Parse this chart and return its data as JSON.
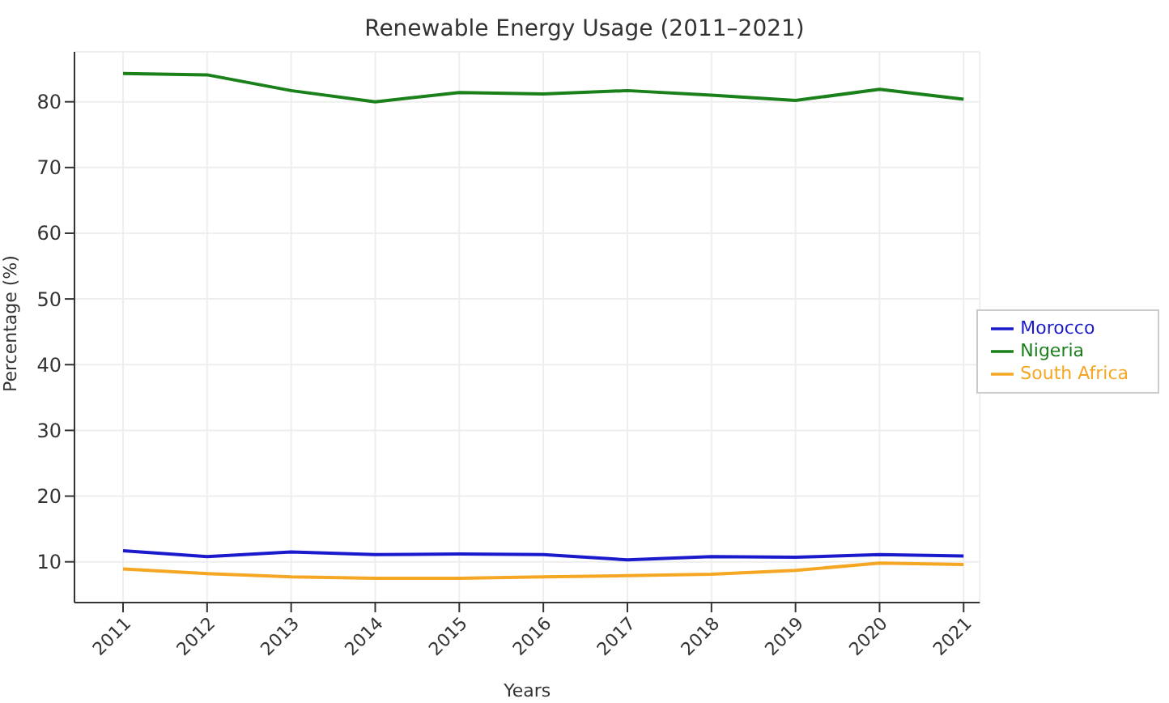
{
  "chart_data": {
    "type": "line",
    "title": "Renewable Energy Usage (2011–2021)",
    "xlabel": "Years",
    "ylabel": "Percentage (%)",
    "categories": [
      "2011",
      "2012",
      "2013",
      "2014",
      "2015",
      "2016",
      "2017",
      "2018",
      "2019",
      "2020",
      "2021"
    ],
    "series": [
      {
        "name": "Nigeria",
        "color": "#1a801a",
        "values": [
          84.3,
          84.1,
          81.7,
          80,
          81.4,
          81.2,
          81.7,
          81,
          80.2,
          81.9,
          80.4
        ]
      },
      {
        "name": "Morocco",
        "color": "#1a1acc",
        "values": [
          11.7,
          10.8,
          11.5,
          11.1,
          11.2,
          11.1,
          10.3,
          10.8,
          10.7,
          11.1,
          10.9
        ]
      },
      {
        "name": "South Africa",
        "color": "#f5a623",
        "values": [
          8.9,
          8.2,
          7.7,
          7.5,
          7.5,
          7.7,
          7.9,
          8.1,
          8.7,
          9.8,
          9.6
        ]
      }
    ],
    "ylim": [
      3.8,
      87.6
    ],
    "yticks": [
      10,
      20,
      30,
      40,
      50,
      60,
      70,
      80
    ],
    "grid": true,
    "legend": "right",
    "marker": "none",
    "line_style": "solid"
  }
}
